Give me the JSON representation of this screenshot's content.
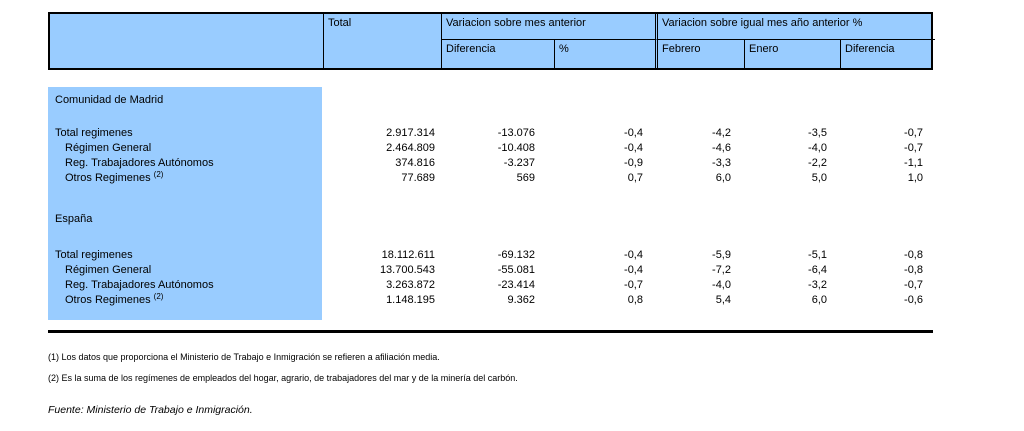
{
  "colors": {
    "header_blue": "#99CCFF",
    "border": "#000000",
    "text": "#000000"
  },
  "table": {
    "header": {
      "label_cell": "",
      "total": "Total",
      "group_month": "Variacion sobre mes anterior",
      "group_year": "Variacion sobre igual mes año anterior %",
      "sub_diferencia_1": "Diferencia",
      "sub_pct": "%",
      "sub_febrero": "Febrero",
      "sub_enero": "Enero",
      "sub_diferencia_2": "Diferencia"
    },
    "sections": [
      {
        "title": "Comunidad de Madrid",
        "rows": [
          {
            "label": "Total regimenes",
            "sup": "",
            "indent": false,
            "values": [
              "2.917.314",
              "-13.076",
              "-0,4",
              "-4,2",
              "-3,5",
              "-0,7"
            ]
          },
          {
            "label": "Régimen General",
            "sup": "",
            "indent": true,
            "values": [
              "2.464.809",
              "-10.408",
              "-0,4",
              "-4,6",
              "-4,0",
              "-0,7"
            ]
          },
          {
            "label": "Reg. Trabajadores Autónomos",
            "sup": "",
            "indent": true,
            "values": [
              "374.816",
              "-3.237",
              "-0,9",
              "-3,3",
              "-2,2",
              "-1,1"
            ]
          },
          {
            "label": "Otros Regimenes ",
            "sup": "(2)",
            "indent": true,
            "values": [
              "77.689",
              "569",
              "0,7",
              "6,0",
              "5,0",
              "1,0"
            ]
          }
        ]
      },
      {
        "title": "España",
        "rows": [
          {
            "label": "Total regimenes",
            "sup": "",
            "indent": false,
            "values": [
              "18.112.611",
              "-69.132",
              "-0,4",
              "-5,9",
              "-5,1",
              "-0,8"
            ]
          },
          {
            "label": "Régimen General",
            "sup": "",
            "indent": true,
            "values": [
              "13.700.543",
              "-55.081",
              "-0,4",
              "-7,2",
              "-6,4",
              "-0,8"
            ]
          },
          {
            "label": "Reg. Trabajadores Autónomos",
            "sup": "",
            "indent": true,
            "values": [
              "3.263.872",
              "-23.414",
              "-0,7",
              "-4,0",
              "-3,2",
              "-0,7"
            ]
          },
          {
            "label": "Otros Regimenes ",
            "sup": "(2)",
            "indent": true,
            "values": [
              "1.148.195",
              "9.362",
              "0,8",
              "5,4",
              "6,0",
              "-0,6"
            ]
          }
        ]
      }
    ]
  },
  "footnotes": [
    "(1) Los datos que proporciona el Ministerio de Trabajo e Inmigración se refieren a afiliación media.",
    "(2) Es la suma de los regímenes de empleados del hogar, agrario, de trabajadores del mar y de la minería del carbón."
  ],
  "source": "Fuente: Ministerio de Trabajo e Inmigración."
}
